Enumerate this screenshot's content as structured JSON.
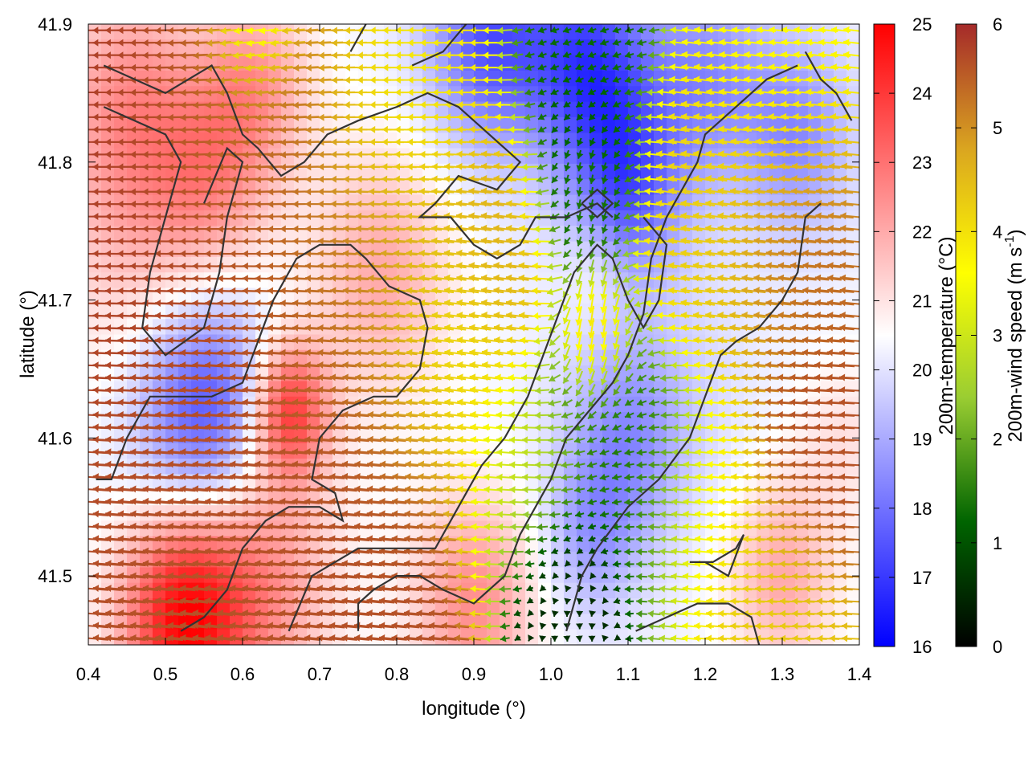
{
  "chart_data": {
    "type": "heatmap",
    "title": "",
    "xlabel": "longitude (°)",
    "ylabel": "latitude (°)",
    "xlim": [
      0.4,
      1.4
    ],
    "ylim": [
      41.45,
      41.9
    ],
    "x_ticks": [
      "0.4",
      "0.5",
      "0.6",
      "0.7",
      "0.8",
      "0.9",
      "1.0",
      "1.1",
      "1.2",
      "1.3",
      "1.4"
    ],
    "y_ticks": [
      "41.5",
      "41.6",
      "41.7",
      "41.8",
      "41.9"
    ],
    "grid": false,
    "temperature_colorbar": {
      "label": "200m-temperature (°C)",
      "range": [
        16,
        25
      ],
      "ticks": [
        "16",
        "17",
        "18",
        "19",
        "20",
        "21",
        "22",
        "23",
        "24",
        "25"
      ],
      "colors": [
        "#0000ff",
        "#ffffff",
        "#ff0000"
      ]
    },
    "wind_colorbar": {
      "label": "200m-wind speed (m s-1)",
      "label_main": "200m-wind speed (m s",
      "label_sup": "-1",
      "label_end": ")",
      "range": [
        0,
        6
      ],
      "ticks": [
        "0",
        "1",
        "2",
        "3",
        "4",
        "5",
        "6"
      ],
      "colors": [
        "#000000",
        "#006400",
        "#9acd32",
        "#ffff00",
        "#daa520",
        "#a52a2a"
      ]
    },
    "temperature_features": [
      {
        "lon": 0.45,
        "lat": 41.85,
        "t": 22.0,
        "r": 0.09
      },
      {
        "lon": 0.47,
        "lat": 41.74,
        "t": 21.5,
        "r": 0.12
      },
      {
        "lon": 0.56,
        "lat": 41.79,
        "t": 22.0,
        "r": 0.08
      },
      {
        "lon": 0.62,
        "lat": 41.86,
        "t": 22.0,
        "r": 0.07
      },
      {
        "lon": 0.55,
        "lat": 41.62,
        "t": 17.0,
        "r": 0.09
      },
      {
        "lon": 0.66,
        "lat": 41.62,
        "t": 24.0,
        "r": 0.05
      },
      {
        "lon": 0.52,
        "lat": 41.47,
        "t": 24.5,
        "r": 0.08
      },
      {
        "lon": 0.62,
        "lat": 41.5,
        "t": 22.5,
        "r": 0.1
      },
      {
        "lon": 0.78,
        "lat": 41.72,
        "t": 22.0,
        "r": 0.09
      },
      {
        "lon": 0.9,
        "lat": 41.48,
        "t": 22.5,
        "r": 0.08
      },
      {
        "lon": 0.92,
        "lat": 41.89,
        "t": 17.5,
        "r": 0.08
      },
      {
        "lon": 1.05,
        "lat": 41.87,
        "t": 17.2,
        "r": 0.08
      },
      {
        "lon": 1.1,
        "lat": 41.78,
        "t": 17.8,
        "r": 0.07
      },
      {
        "lon": 1.2,
        "lat": 41.86,
        "t": 18.5,
        "r": 0.08
      },
      {
        "lon": 1.32,
        "lat": 41.82,
        "t": 18.5,
        "r": 0.07
      },
      {
        "lon": 1.06,
        "lat": 41.72,
        "t": 21.0,
        "r": 0.04
      },
      {
        "lon": 1.1,
        "lat": 41.6,
        "t": 18.5,
        "r": 0.08
      },
      {
        "lon": 1.05,
        "lat": 41.53,
        "t": 19.0,
        "r": 0.06
      },
      {
        "lon": 1.2,
        "lat": 41.65,
        "t": 20.0,
        "r": 0.08
      },
      {
        "lon": 1.3,
        "lat": 41.5,
        "t": 22.0,
        "r": 0.07
      },
      {
        "lon": 1.38,
        "lat": 41.6,
        "t": 21.0,
        "r": 0.06
      }
    ],
    "wind_sources": [
      {
        "lon": 0.5,
        "lat": 41.7,
        "u": -5.8,
        "v": 0.0,
        "r": 0.2
      },
      {
        "lon": 0.55,
        "lat": 41.55,
        "u": -5.5,
        "v": 0.8,
        "r": 0.15
      },
      {
        "lon": 0.68,
        "lat": 41.55,
        "u": -5.6,
        "v": 0.5,
        "r": 0.12
      },
      {
        "lon": 0.62,
        "lat": 41.83,
        "u": -5.2,
        "v": -0.5,
        "r": 0.1
      },
      {
        "lon": 0.75,
        "lat": 41.7,
        "u": -5.0,
        "v": 0.4,
        "r": 0.1
      },
      {
        "lon": 0.86,
        "lat": 41.67,
        "u": -3.8,
        "v": 0.6,
        "r": 0.07
      },
      {
        "lon": 0.8,
        "lat": 41.85,
        "u": -3.8,
        "v": 0.0,
        "r": 0.08
      },
      {
        "lon": 0.93,
        "lat": 41.73,
        "u": -4.6,
        "v": 0.6,
        "r": 0.06
      },
      {
        "lon": 0.98,
        "lat": 41.57,
        "u": -3.0,
        "v": 0.2,
        "r": 0.06
      },
      {
        "lon": 1.05,
        "lat": 41.78,
        "u": 0.0,
        "v": -1.5,
        "r": 0.05
      },
      {
        "lon": 1.08,
        "lat": 41.6,
        "u": -1.2,
        "v": -0.8,
        "r": 0.07
      },
      {
        "lon": 1.12,
        "lat": 41.56,
        "u": -1.6,
        "v": 0.3,
        "r": 0.06
      },
      {
        "lon": 1.02,
        "lat": 41.5,
        "u": 0.2,
        "v": -0.6,
        "r": 0.05
      },
      {
        "lon": 1.2,
        "lat": 41.75,
        "u": -4.2,
        "v": 0.6,
        "r": 0.08
      },
      {
        "lon": 1.32,
        "lat": 41.75,
        "u": -5.4,
        "v": 0.5,
        "r": 0.07
      },
      {
        "lon": 1.3,
        "lat": 41.85,
        "u": -3.6,
        "v": 0.4,
        "r": 0.08
      },
      {
        "lon": 1.2,
        "lat": 41.55,
        "u": -3.8,
        "v": 0.4,
        "r": 0.06
      },
      {
        "lon": 1.35,
        "lat": 41.58,
        "u": -5.6,
        "v": 0.3,
        "r": 0.06
      },
      {
        "lon": 1.3,
        "lat": 41.48,
        "u": -4.3,
        "v": 0.2,
        "r": 0.06
      },
      {
        "lon": 1.05,
        "lat": 41.88,
        "u": -1.2,
        "v": -0.4,
        "r": 0.06
      },
      {
        "lon": 0.62,
        "lat": 41.9,
        "u": -1.8,
        "v": -0.6,
        "r": 0.04
      },
      {
        "lon": 1.06,
        "lat": 41.67,
        "u": -0.3,
        "v": -4.8,
        "r": 0.04
      }
    ],
    "terrain_contours": [
      [
        [
          0.42,
          41.87
        ],
        [
          0.46,
          41.86
        ],
        [
          0.5,
          41.85
        ],
        [
          0.53,
          41.86
        ],
        [
          0.56,
          41.87
        ],
        [
          0.58,
          41.85
        ],
        [
          0.6,
          41.82
        ],
        [
          0.62,
          41.81
        ],
        [
          0.65,
          41.79
        ],
        [
          0.68,
          41.8
        ],
        [
          0.71,
          41.82
        ],
        [
          0.75,
          41.83
        ],
        [
          0.8,
          41.84
        ],
        [
          0.84,
          41.85
        ],
        [
          0.88,
          41.84
        ],
        [
          0.92,
          41.82
        ],
        [
          0.96,
          41.8
        ],
        [
          0.93,
          41.78
        ],
        [
          0.88,
          41.79
        ],
        [
          0.85,
          41.77
        ],
        [
          0.83,
          41.76
        ],
        [
          0.87,
          41.76
        ],
        [
          0.9,
          41.74
        ],
        [
          0.93,
          41.73
        ],
        [
          0.96,
          41.74
        ],
        [
          0.98,
          41.76
        ],
        [
          1.02,
          41.76
        ],
        [
          1.06,
          41.77
        ],
        [
          1.08,
          41.76
        ]
      ],
      [
        [
          0.42,
          41.84
        ],
        [
          0.46,
          41.83
        ],
        [
          0.5,
          41.82
        ],
        [
          0.52,
          41.8
        ],
        [
          0.5,
          41.76
        ],
        [
          0.48,
          41.72
        ],
        [
          0.47,
          41.68
        ],
        [
          0.5,
          41.66
        ],
        [
          0.55,
          41.68
        ],
        [
          0.57,
          41.72
        ],
        [
          0.58,
          41.76
        ],
        [
          0.6,
          41.8
        ],
        [
          0.58,
          41.81
        ],
        [
          0.55,
          41.77
        ]
      ],
      [
        [
          0.41,
          41.57
        ],
        [
          0.43,
          41.57
        ],
        [
          0.45,
          41.6
        ],
        [
          0.48,
          41.63
        ],
        [
          0.52,
          41.63
        ],
        [
          0.56,
          41.63
        ],
        [
          0.6,
          41.64
        ],
        [
          0.62,
          41.67
        ],
        [
          0.64,
          41.7
        ],
        [
          0.67,
          41.73
        ],
        [
          0.7,
          41.74
        ],
        [
          0.74,
          41.74
        ],
        [
          0.76,
          41.73
        ],
        [
          0.79,
          41.71
        ],
        [
          0.83,
          41.7
        ],
        [
          0.84,
          41.68
        ],
        [
          0.83,
          41.65
        ],
        [
          0.8,
          41.63
        ],
        [
          0.77,
          41.63
        ],
        [
          0.73,
          41.62
        ],
        [
          0.7,
          41.6
        ],
        [
          0.69,
          41.57
        ],
        [
          0.72,
          41.56
        ],
        [
          0.73,
          41.54
        ],
        [
          0.7,
          41.55
        ],
        [
          0.66,
          41.55
        ],
        [
          0.63,
          41.54
        ],
        [
          0.6,
          41.52
        ],
        [
          0.58,
          41.49
        ],
        [
          0.55,
          41.47
        ],
        [
          0.52,
          41.46
        ]
      ],
      [
        [
          0.66,
          41.46
        ],
        [
          0.69,
          41.5
        ],
        [
          0.72,
          41.51
        ],
        [
          0.75,
          41.52
        ],
        [
          0.8,
          41.52
        ],
        [
          0.85,
          41.52
        ],
        [
          0.88,
          41.55
        ],
        [
          0.91,
          41.58
        ],
        [
          0.94,
          41.6
        ],
        [
          0.97,
          41.63
        ],
        [
          0.99,
          41.66
        ],
        [
          1.01,
          41.69
        ],
        [
          1.03,
          41.72
        ],
        [
          1.06,
          41.74
        ],
        [
          1.08,
          41.73
        ],
        [
          1.1,
          41.7
        ],
        [
          1.12,
          41.68
        ],
        [
          1.14,
          41.7
        ],
        [
          1.15,
          41.74
        ],
        [
          1.12,
          41.76
        ]
      ],
      [
        [
          0.75,
          41.46
        ],
        [
          0.75,
          41.48
        ],
        [
          0.77,
          41.49
        ],
        [
          0.8,
          41.5
        ],
        [
          0.83,
          41.5
        ],
        [
          0.86,
          41.49
        ],
        [
          0.9,
          41.48
        ],
        [
          0.94,
          41.5
        ],
        [
          0.96,
          41.53
        ],
        [
          0.98,
          41.55
        ],
        [
          1.0,
          41.57
        ],
        [
          1.02,
          41.6
        ],
        [
          1.05,
          41.62
        ],
        [
          1.08,
          41.64
        ],
        [
          1.1,
          41.66
        ],
        [
          1.12,
          41.69
        ],
        [
          1.13,
          41.73
        ],
        [
          1.15,
          41.76
        ],
        [
          1.17,
          41.78
        ],
        [
          1.19,
          41.8
        ],
        [
          1.2,
          41.82
        ],
        [
          1.24,
          41.84
        ],
        [
          1.28,
          41.86
        ],
        [
          1.32,
          41.87
        ]
      ],
      [
        [
          1.02,
          41.46
        ],
        [
          1.04,
          41.5
        ],
        [
          1.06,
          41.52
        ],
        [
          1.1,
          41.55
        ],
        [
          1.14,
          41.57
        ],
        [
          1.18,
          41.6
        ],
        [
          1.2,
          41.63
        ],
        [
          1.22,
          41.66
        ],
        [
          1.24,
          41.67
        ],
        [
          1.27,
          41.68
        ],
        [
          1.3,
          41.7
        ],
        [
          1.32,
          41.72
        ],
        [
          1.33,
          41.76
        ],
        [
          1.35,
          41.77
        ]
      ],
      [
        [
          1.11,
          41.46
        ],
        [
          1.15,
          41.47
        ],
        [
          1.19,
          41.48
        ],
        [
          1.23,
          41.48
        ],
        [
          1.26,
          41.47
        ],
        [
          1.27,
          41.45
        ]
      ],
      [
        [
          1.18,
          41.51
        ],
        [
          1.21,
          41.51
        ],
        [
          1.24,
          41.52
        ],
        [
          1.25,
          41.53
        ],
        [
          1.23,
          41.5
        ],
        [
          1.2,
          41.51
        ]
      ],
      [
        [
          1.04,
          41.77
        ],
        [
          1.06,
          41.78
        ],
        [
          1.08,
          41.77
        ],
        [
          1.06,
          41.76
        ],
        [
          1.04,
          41.77
        ]
      ],
      [
        [
          0.74,
          41.88
        ],
        [
          0.76,
          41.9
        ]
      ],
      [
        [
          0.82,
          41.87
        ],
        [
          0.86,
          41.88
        ],
        [
          0.89,
          41.9
        ]
      ],
      [
        [
          1.33,
          41.88
        ],
        [
          1.35,
          41.86
        ],
        [
          1.37,
          41.85
        ],
        [
          1.39,
          41.83
        ]
      ]
    ]
  }
}
